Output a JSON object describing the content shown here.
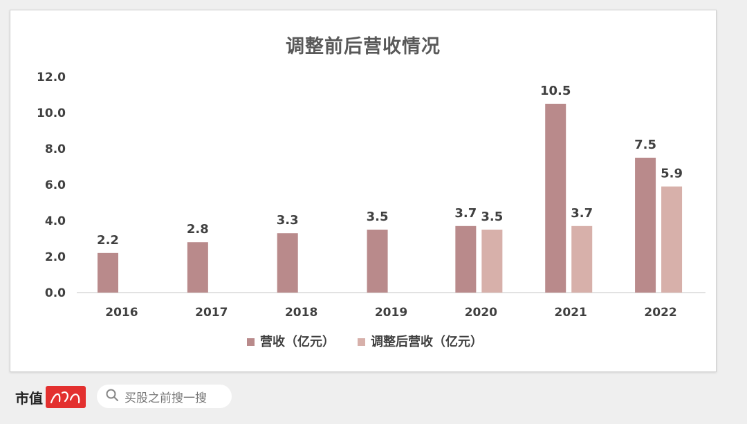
{
  "chart_data": {
    "type": "bar",
    "title": "调整前后营收情况",
    "categories": [
      "2016",
      "2017",
      "2018",
      "2019",
      "2020",
      "2021",
      "2022"
    ],
    "series": [
      {
        "name": "营收（亿元）",
        "color": "#b98a8b",
        "values": [
          2.2,
          2.8,
          3.3,
          3.5,
          3.7,
          10.5,
          7.5
        ]
      },
      {
        "name": "调整后营收（亿元）",
        "color": "#d7b0aa",
        "values": [
          null,
          null,
          null,
          null,
          3.5,
          3.7,
          5.9
        ]
      }
    ],
    "ylim": [
      0,
      12
    ],
    "yticks": [
      "0.0",
      "2.0",
      "4.0",
      "6.0",
      "8.0",
      "10.0",
      "12.0"
    ],
    "xlabel": "",
    "ylabel": "",
    "grid": false,
    "legend": "bottom"
  },
  "footer": {
    "brand": "市值",
    "search_placeholder": "买股之前搜一搜"
  }
}
